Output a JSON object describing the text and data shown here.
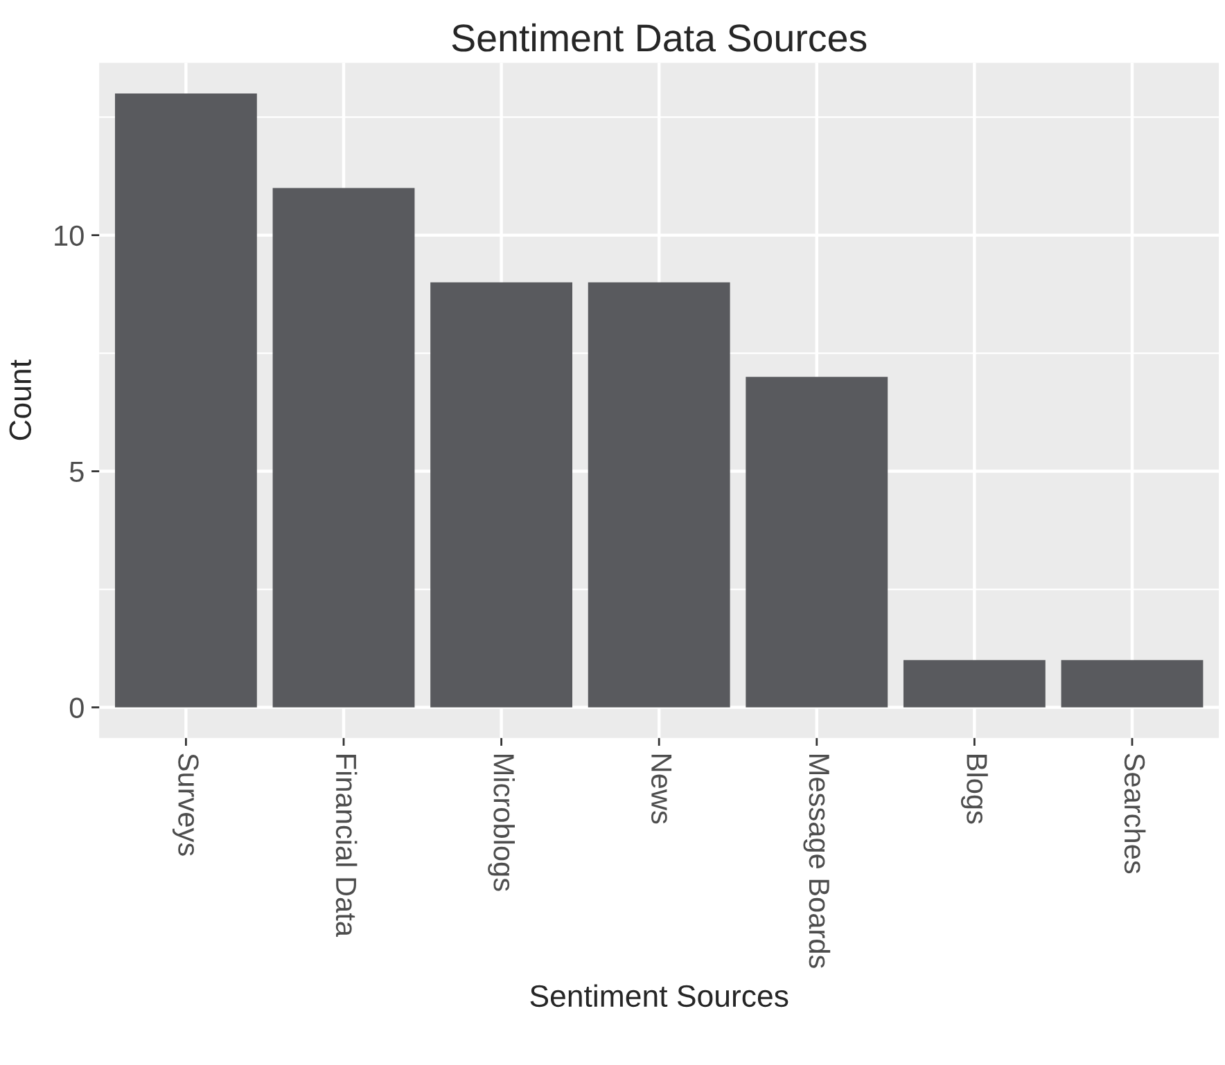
{
  "chart_data": {
    "type": "bar",
    "title": "Sentiment Data Sources",
    "xlabel": "Sentiment Sources",
    "ylabel": "Count",
    "categories": [
      "Surveys",
      "Financial Data",
      "Microblogs",
      "News",
      "Message Boards",
      "Blogs",
      "Searches"
    ],
    "values": [
      13,
      11,
      9,
      9,
      7,
      1,
      1
    ],
    "color": "#595a5e",
    "ylim": [
      -0.65,
      13.65
    ],
    "yticks": [
      0,
      5,
      10
    ],
    "grid": true
  }
}
